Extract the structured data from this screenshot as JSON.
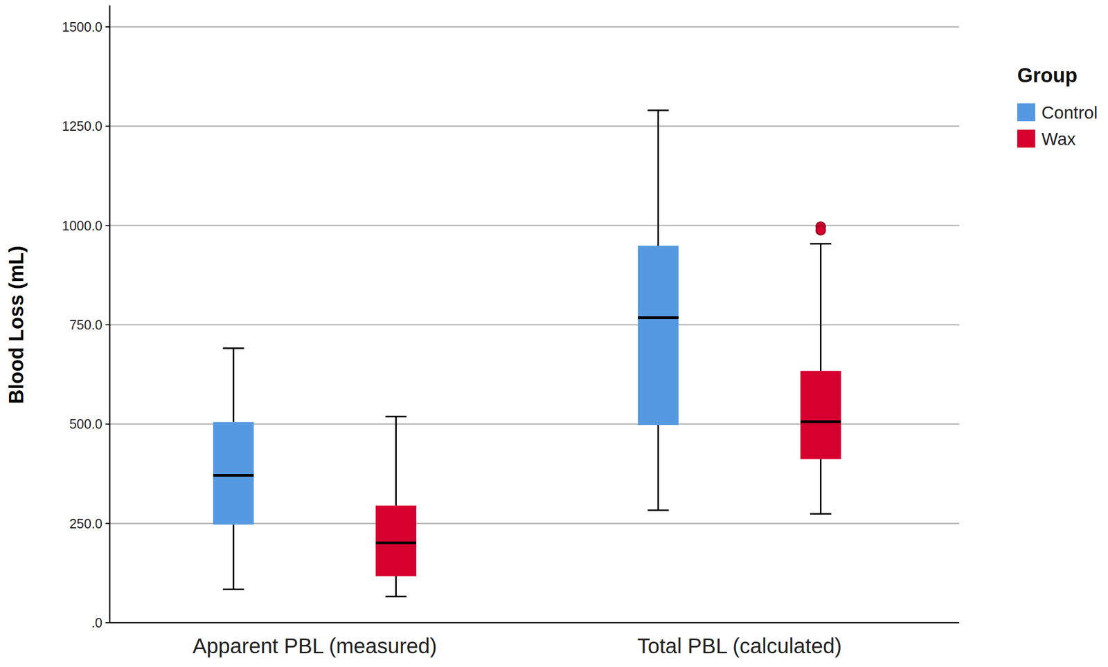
{
  "chart_data": {
    "type": "box",
    "y_label": "Blood Loss (mL)",
    "legend_title": "Group",
    "categories": [
      "Apparent PBL (measured)",
      "Total PBL (calculated)"
    ],
    "series": [
      {
        "name": "Control",
        "color": "#5499e2",
        "min": [
          84,
          283
        ],
        "q1": [
          247,
          498
        ],
        "median": [
          371,
          768
        ],
        "q3": [
          505,
          949
        ],
        "max": [
          691,
          1290
        ],
        "outliers": [
          [],
          []
        ]
      },
      {
        "name": "Wax",
        "color": "#d6002f",
        "min": [
          66,
          274
        ],
        "q1": [
          117,
          412
        ],
        "median": [
          201,
          506
        ],
        "q3": [
          295,
          634
        ],
        "max": [
          519,
          954
        ],
        "outliers": [
          [],
          [
            997,
            988
          ]
        ]
      }
    ],
    "ylim": [
      0,
      1500
    ],
    "yticks": [
      {
        "value": 0,
        "label": ".0"
      },
      {
        "value": 250,
        "label": "250.0"
      },
      {
        "value": 500,
        "label": "500.0"
      },
      {
        "value": 750,
        "label": "750.0"
      },
      {
        "value": 1000,
        "label": "1000.0"
      },
      {
        "value": 1250,
        "label": "1250.0"
      },
      {
        "value": 1500,
        "label": "1500.0"
      }
    ],
    "grid": true,
    "legend": "right"
  }
}
